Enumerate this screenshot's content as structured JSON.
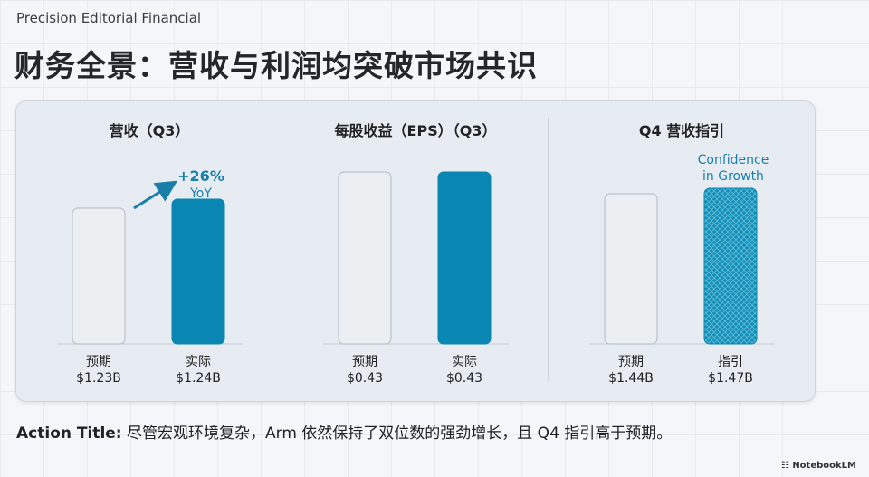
{
  "header": {
    "brand": "Precision Editorial Financial",
    "title": "财务全景：营收与利润均突破市场共识"
  },
  "chart_data": [
    {
      "type": "bar",
      "title": "营收（Q3）",
      "categories": [
        "预期",
        "实际"
      ],
      "value_labels": [
        "$1.23B",
        "$1.24B"
      ],
      "values": [
        1.23,
        1.24
      ],
      "annotation": {
        "main": "+26%",
        "sub": "YoY"
      }
    },
    {
      "type": "bar",
      "title": "每股收益（EPS）（Q3）",
      "categories": [
        "预期",
        "实际"
      ],
      "value_labels": [
        "$0.43",
        "$0.43"
      ],
      "values": [
        0.43,
        0.43
      ]
    },
    {
      "type": "bar",
      "title": "Q4 营收指引",
      "categories": [
        "预期",
        "指引"
      ],
      "value_labels": [
        "$1.44B",
        "$1.47B"
      ],
      "values": [
        1.44,
        1.47
      ],
      "annotation": {
        "main": "Confidence",
        "sub": "in Growth"
      }
    }
  ],
  "colors": {
    "accent": "#0a86b2",
    "expected_fill": "#eceff2",
    "expected_stroke": "#b9c2cb",
    "accent_text": "#1a7fa8"
  },
  "footer": {
    "label": "Action Title:",
    "text": "尽管宏观环境复杂，Arm 依然保持了双位数的强劲增长，且 Q4 指引高于预期。"
  },
  "watermark": "NotebookLM"
}
